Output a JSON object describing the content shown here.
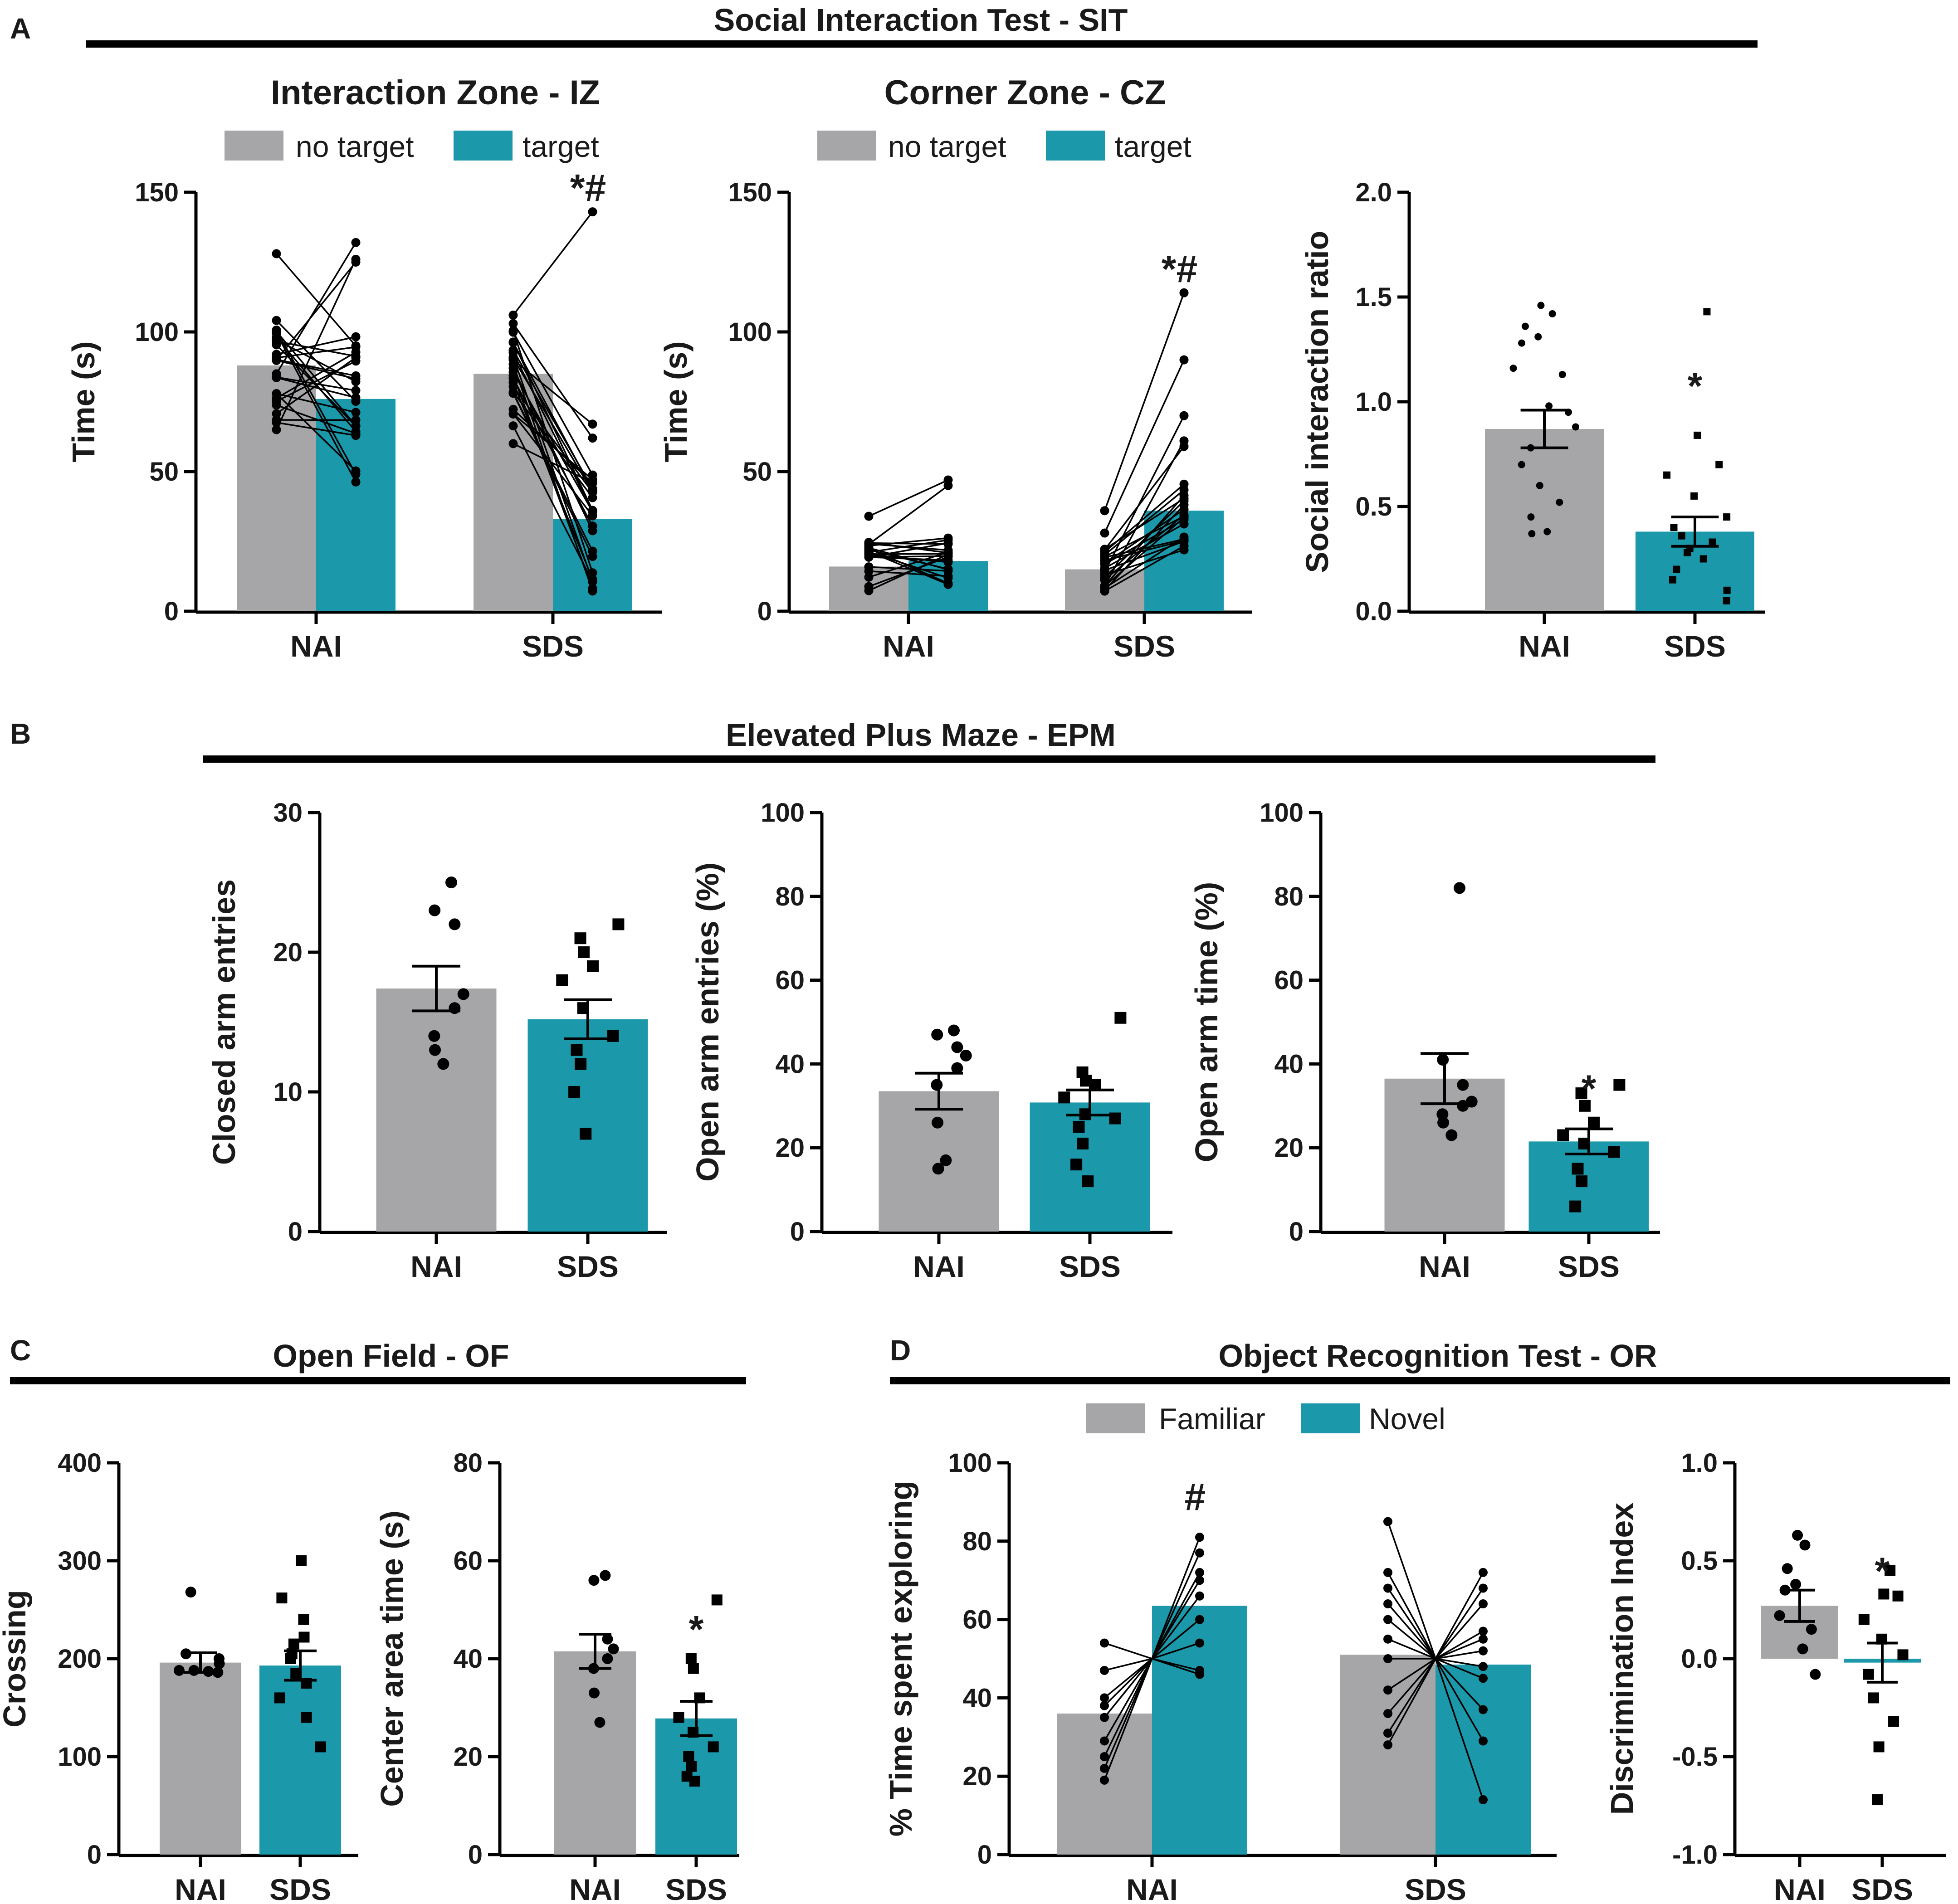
{
  "colors": {
    "gray": "#a6a5a8",
    "teal": "#1b98aa",
    "ink": "#000000"
  },
  "panels": {
    "A": {
      "letter": "A",
      "title": "Social Interaction Test - SIT"
    },
    "B": {
      "letter": "B",
      "title": "Elevated Plus Maze - EPM"
    },
    "C": {
      "letter": "C",
      "title": "Open Field - OF"
    },
    "D": {
      "letter": "D",
      "title": "Object Recognition Test - OR"
    }
  },
  "legend_sit": {
    "a": "no target",
    "b": "target"
  },
  "legend_or": {
    "a": "Familiar",
    "b": "Novel"
  },
  "chart_data": [
    {
      "id": "iz",
      "type": "bar",
      "title": "Interaction Zone - IZ",
      "categories": [
        "NAI",
        "SDS"
      ],
      "ylabel": "Time (s)",
      "ylim": [
        0,
        150
      ],
      "yticks": [
        "0",
        "50",
        "100",
        "150"
      ],
      "series": [
        {
          "name": "no target",
          "values": [
            88,
            85
          ]
        },
        {
          "name": "target",
          "values": [
            76,
            33
          ]
        }
      ],
      "annotations": [
        "",
        "*#"
      ]
    },
    {
      "id": "cz",
      "type": "bar",
      "title": "Corner Zone - CZ",
      "categories": [
        "NAI",
        "SDS"
      ],
      "ylabel": "Time (s)",
      "ylim": [
        0,
        150
      ],
      "yticks": [
        "0",
        "50",
        "100",
        "150"
      ],
      "series": [
        {
          "name": "no target",
          "values": [
            16,
            15
          ]
        },
        {
          "name": "target",
          "values": [
            18,
            36
          ]
        }
      ],
      "annotations": [
        "",
        "*#"
      ]
    },
    {
      "id": "si",
      "type": "bar",
      "title": "",
      "categories": [
        "NAI",
        "SDS"
      ],
      "ylabel": "Social interaction ratio",
      "ylim": [
        0,
        2
      ],
      "yticks": [
        "0.0",
        "0.5",
        "1.0",
        "1.5",
        "2.0"
      ],
      "values": [
        0.87,
        0.38
      ],
      "sem": [
        0.09,
        0.07
      ],
      "annotations": [
        "",
        "*"
      ]
    },
    {
      "id": "cae",
      "type": "bar",
      "title": "",
      "categories": [
        "NAI",
        "SDS"
      ],
      "ylabel": "Closed arm entries",
      "ylim": [
        0,
        30
      ],
      "yticks": [
        "0",
        "10",
        "20",
        "30"
      ],
      "values": [
        17.4,
        15.2
      ],
      "sem": [
        1.6,
        1.4
      ],
      "annotations": [
        "",
        ""
      ]
    },
    {
      "id": "oae",
      "type": "bar",
      "title": "",
      "categories": [
        "NAI",
        "SDS"
      ],
      "ylabel": "Open arm entries (%)",
      "ylim": [
        0,
        100
      ],
      "yticks": [
        "0",
        "20",
        "40",
        "60",
        "80",
        "100"
      ],
      "values": [
        33.5,
        30.8
      ],
      "sem": [
        4.3,
        3.0
      ],
      "annotations": [
        "",
        ""
      ]
    },
    {
      "id": "oat",
      "type": "bar",
      "title": "",
      "categories": [
        "NAI",
        "SDS"
      ],
      "ylabel": "Open arm time (%)",
      "ylim": [
        0,
        100
      ],
      "yticks": [
        "0",
        "20",
        "40",
        "60",
        "80",
        "100"
      ],
      "values": [
        36.5,
        21.5
      ],
      "sem": [
        6.0,
        3.0
      ],
      "annotations": [
        "",
        "*"
      ]
    },
    {
      "id": "cross",
      "type": "bar",
      "title": "",
      "categories": [
        "NAI",
        "SDS"
      ],
      "ylabel": "Crossing",
      "ylim": [
        0,
        400
      ],
      "yticks": [
        "0",
        "100",
        "200",
        "300",
        "400"
      ],
      "values": [
        196,
        193
      ],
      "sem": [
        10,
        15
      ],
      "annotations": [
        "",
        ""
      ]
    },
    {
      "id": "cat",
      "type": "bar",
      "title": "",
      "categories": [
        "NAI",
        "SDS"
      ],
      "ylabel": "Center area time (s)",
      "ylim": [
        0,
        80
      ],
      "yticks": [
        "0",
        "20",
        "40",
        "60",
        "80"
      ],
      "values": [
        41.5,
        27.8
      ],
      "sem": [
        3.5,
        3.5
      ],
      "annotations": [
        "",
        "*"
      ]
    },
    {
      "id": "or",
      "type": "bar",
      "title": "",
      "categories": [
        "NAI",
        "SDS"
      ],
      "ylabel": "% Time spent exploring",
      "ylim": [
        0,
        100
      ],
      "yticks": [
        "0",
        "20",
        "40",
        "60",
        "80",
        "100"
      ],
      "series": [
        {
          "name": "Familiar",
          "values": [
            36,
            51
          ]
        },
        {
          "name": "Novel",
          "values": [
            63.5,
            48.5
          ]
        }
      ],
      "annotations": [
        "#",
        ""
      ]
    },
    {
      "id": "di",
      "type": "bar",
      "title": "",
      "categories": [
        "NAI",
        "SDS"
      ],
      "ylabel": "Discrimination Index",
      "ylim": [
        -1,
        1
      ],
      "yticks": [
        "-1.0",
        "-0.5",
        "0.0",
        "0.5",
        "1.0"
      ],
      "values": [
        0.27,
        -0.02
      ],
      "sem": [
        0.08,
        0.1
      ],
      "annotations": [
        "",
        "*"
      ]
    }
  ]
}
